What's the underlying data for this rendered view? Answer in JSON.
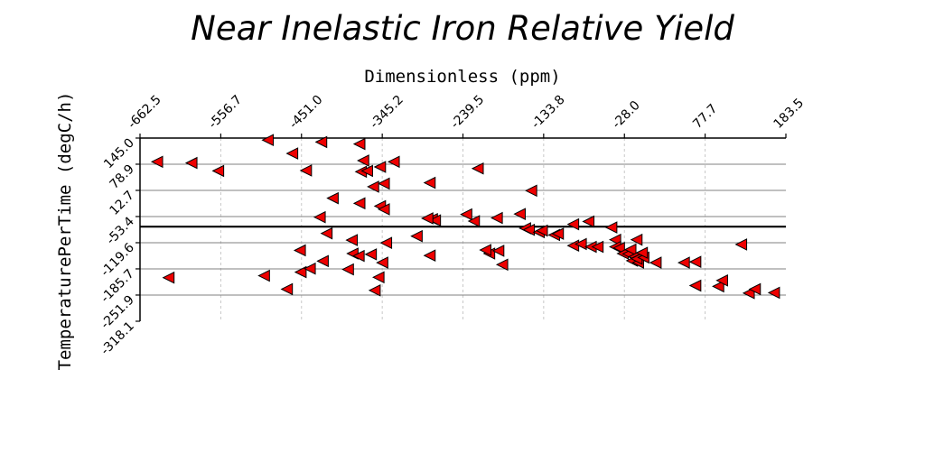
{
  "chart_data": {
    "type": "scatter",
    "title": "Near Inelastic Iron Relative Yield",
    "xlabel": "Dimensionless (ppm)",
    "ylabel": "TemperaturePerTime (degC/h)",
    "xlim": [
      -662.5,
      183.5
    ],
    "ylim": [
      -318.1,
      145.0
    ],
    "x_ticks": [
      "-662.5",
      "-556.7",
      "-451.0",
      "-345.2",
      "-239.5",
      "-133.8",
      "-28.0",
      "77.7",
      "183.5"
    ],
    "y_ticks": [
      "145.0",
      "78.9",
      "12.7",
      "-53.4",
      "-119.6",
      "-185.7",
      "-251.9",
      "-318.1"
    ],
    "x_axis_position": "top",
    "grid": true,
    "reference_line_y": -79,
    "marker": "triangle-left",
    "marker_color": "#ee0000",
    "series": [
      {
        "points": [
          [
            -640,
            85
          ],
          [
            -595,
            82
          ],
          [
            -560,
            62
          ],
          [
            -495,
            140
          ],
          [
            -425,
            135
          ],
          [
            -375,
            130
          ],
          [
            -370,
            88
          ],
          [
            -373,
            60
          ],
          [
            -445,
            63
          ],
          [
            -463,
            106
          ],
          [
            -365,
            62
          ],
          [
            -348,
            72
          ],
          [
            -343,
            30
          ],
          [
            -357,
            22
          ],
          [
            -283,
            32
          ],
          [
            -220,
            68
          ],
          [
            -150,
            12
          ],
          [
            -330,
            85
          ],
          [
            -427,
            -55
          ],
          [
            -410,
            -7
          ],
          [
            -375,
            -20
          ],
          [
            -348,
            -27
          ],
          [
            -343,
            -35
          ],
          [
            -280,
            -60
          ],
          [
            -276,
            -63
          ],
          [
            -286,
            -58
          ],
          [
            -235,
            -48
          ],
          [
            -225,
            -65
          ],
          [
            -195,
            -57
          ],
          [
            -165,
            -47
          ],
          [
            -158,
            -83
          ],
          [
            -153,
            -87
          ],
          [
            -140,
            -93
          ],
          [
            -136,
            -89
          ],
          [
            -120,
            -100
          ],
          [
            -115,
            -97
          ],
          [
            -95,
            -73
          ],
          [
            -75,
            -66
          ],
          [
            -45,
            -81
          ],
          [
            -40,
            -112
          ],
          [
            -12,
            -112
          ],
          [
            -300,
            -103
          ],
          [
            -385,
            -113
          ],
          [
            -418,
            -96
          ],
          [
            -453,
            -139
          ],
          [
            -384,
            -147
          ],
          [
            -423,
            -166
          ],
          [
            -376,
            -153
          ],
          [
            -360,
            -149
          ],
          [
            -340,
            -120
          ],
          [
            -345,
            -170
          ],
          [
            -283,
            -152
          ],
          [
            -205,
            -147
          ],
          [
            -210,
            -138
          ],
          [
            -193,
            -140
          ],
          [
            -188,
            -175
          ],
          [
            -95,
            -127
          ],
          [
            -85,
            -123
          ],
          [
            -72,
            -130
          ],
          [
            -63,
            -130
          ],
          [
            -40,
            -130
          ],
          [
            -35,
            -133
          ],
          [
            -30,
            -147
          ],
          [
            -23,
            -148
          ],
          [
            -20,
            -137
          ],
          [
            -15,
            -155
          ],
          [
            -18,
            -165
          ],
          [
            -10,
            -170
          ],
          [
            -12,
            -160
          ],
          [
            -3,
            -157
          ],
          [
            -5,
            -145
          ],
          [
            13,
            -170
          ],
          [
            50,
            -170
          ],
          [
            65,
            -168
          ],
          [
            95,
            -230
          ],
          [
            100,
            -215
          ],
          [
            135,
            -247
          ],
          [
            143,
            -237
          ],
          [
            168,
            -246
          ],
          [
            125,
            -124
          ],
          [
            -625,
            -208
          ],
          [
            -500,
            -203
          ],
          [
            -470,
            -237
          ],
          [
            -350,
            -207
          ],
          [
            -390,
            -187
          ],
          [
            -355,
            -240
          ],
          [
            -452,
            -194
          ],
          [
            65,
            -228
          ],
          [
            -440,
            -185
          ]
        ]
      }
    ]
  }
}
